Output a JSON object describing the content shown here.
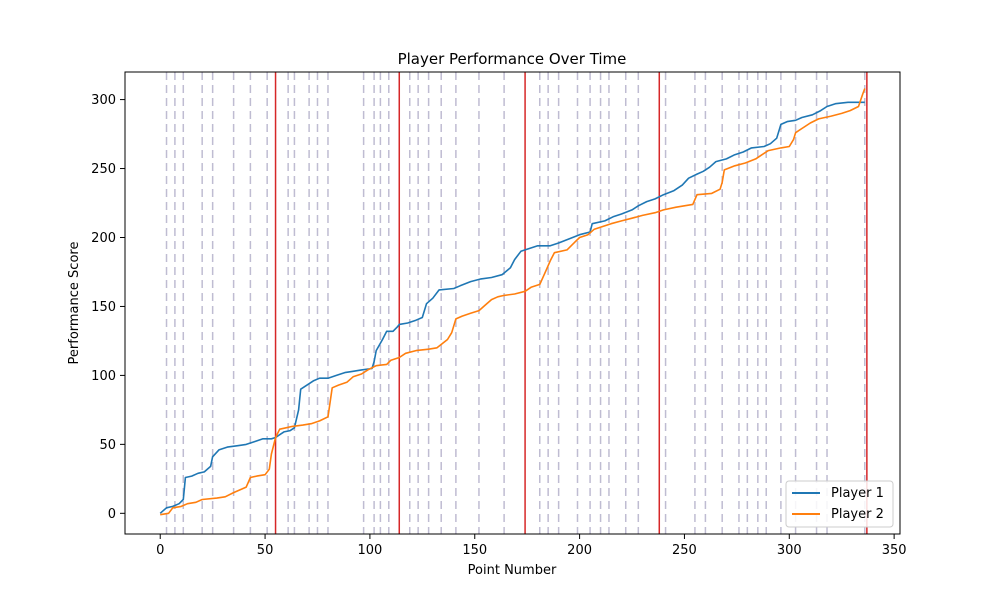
{
  "chart_data": {
    "type": "line",
    "title": "Player Performance Over Time",
    "xlabel": "Point Number",
    "ylabel": "Performance Score",
    "xlim": [
      -16.8,
      352.8
    ],
    "ylim": [
      -15,
      320
    ],
    "xticks": [
      0,
      50,
      100,
      150,
      200,
      250,
      300,
      350
    ],
    "yticks": [
      0,
      50,
      100,
      150,
      200,
      250,
      300
    ],
    "grid": false,
    "legend_position": "lower-right",
    "series": [
      {
        "name": "Player 1",
        "color": "#1f77b4",
        "points": [
          [
            0,
            0
          ],
          [
            3,
            4
          ],
          [
            6,
            5
          ],
          [
            9,
            7
          ],
          [
            11,
            10
          ],
          [
            12,
            26
          ],
          [
            15,
            27
          ],
          [
            18,
            29
          ],
          [
            21,
            30
          ],
          [
            24,
            34
          ],
          [
            25,
            41
          ],
          [
            28,
            46
          ],
          [
            32,
            48
          ],
          [
            37,
            49
          ],
          [
            41,
            50
          ],
          [
            45,
            52
          ],
          [
            49,
            54
          ],
          [
            53,
            54
          ],
          [
            55,
            55
          ],
          [
            57,
            57
          ],
          [
            59,
            59
          ],
          [
            62,
            60
          ],
          [
            64,
            62
          ],
          [
            66,
            75
          ],
          [
            67,
            90
          ],
          [
            70,
            93
          ],
          [
            73,
            96
          ],
          [
            76,
            98
          ],
          [
            80,
            98
          ],
          [
            84,
            100
          ],
          [
            88,
            102
          ],
          [
            92,
            103
          ],
          [
            96,
            104
          ],
          [
            101,
            105
          ],
          [
            102,
            110
          ],
          [
            103,
            118
          ],
          [
            106,
            126
          ],
          [
            108,
            132
          ],
          [
            111,
            132
          ],
          [
            113,
            135
          ],
          [
            114,
            137
          ],
          [
            118,
            138
          ],
          [
            122,
            140
          ],
          [
            125,
            142
          ],
          [
            126,
            147
          ],
          [
            127,
            152
          ],
          [
            130,
            156
          ],
          [
            133,
            162
          ],
          [
            140,
            163
          ],
          [
            143,
            165
          ],
          [
            148,
            168
          ],
          [
            153,
            170
          ],
          [
            158,
            171
          ],
          [
            163,
            173
          ],
          [
            167,
            178
          ],
          [
            169,
            184
          ],
          [
            172,
            190
          ],
          [
            176,
            192
          ],
          [
            180,
            194
          ],
          [
            186,
            194
          ],
          [
            190,
            196
          ],
          [
            195,
            199
          ],
          [
            200,
            202
          ],
          [
            205,
            204
          ],
          [
            206,
            210
          ],
          [
            212,
            212
          ],
          [
            216,
            215
          ],
          [
            220,
            217
          ],
          [
            225,
            220
          ],
          [
            228,
            223
          ],
          [
            232,
            226
          ],
          [
            236,
            228
          ],
          [
            240,
            231
          ],
          [
            245,
            234
          ],
          [
            249,
            238
          ],
          [
            252,
            243
          ],
          [
            256,
            246
          ],
          [
            259,
            248
          ],
          [
            262,
            251
          ],
          [
            265,
            255
          ],
          [
            270,
            257
          ],
          [
            274,
            260
          ],
          [
            278,
            262
          ],
          [
            282,
            265
          ],
          [
            288,
            266
          ],
          [
            291,
            268
          ],
          [
            294,
            272
          ],
          [
            296,
            282
          ],
          [
            299,
            284
          ],
          [
            303,
            285
          ],
          [
            306,
            287
          ],
          [
            311,
            289
          ],
          [
            315,
            292
          ],
          [
            318,
            295
          ],
          [
            322,
            297
          ],
          [
            328,
            298
          ],
          [
            336,
            298
          ]
        ]
      },
      {
        "name": "Player 2",
        "color": "#ff7f0e",
        "points": [
          [
            0,
            -1
          ],
          [
            4,
            0
          ],
          [
            6,
            4
          ],
          [
            10,
            5
          ],
          [
            13,
            7
          ],
          [
            17,
            8
          ],
          [
            20,
            10
          ],
          [
            27,
            11
          ],
          [
            31,
            12
          ],
          [
            35,
            15
          ],
          [
            38,
            17
          ],
          [
            41,
            19
          ],
          [
            43,
            26
          ],
          [
            46,
            27
          ],
          [
            50,
            28
          ],
          [
            52,
            32
          ],
          [
            53,
            43
          ],
          [
            55,
            55
          ],
          [
            57,
            61
          ],
          [
            60,
            62
          ],
          [
            63,
            63
          ],
          [
            68,
            64
          ],
          [
            72,
            65
          ],
          [
            76,
            67
          ],
          [
            80,
            70
          ],
          [
            82,
            91
          ],
          [
            85,
            93
          ],
          [
            89,
            95
          ],
          [
            92,
            99
          ],
          [
            96,
            101
          ],
          [
            99,
            104
          ],
          [
            103,
            107
          ],
          [
            108,
            108
          ],
          [
            110,
            111
          ],
          [
            114,
            113
          ],
          [
            117,
            116
          ],
          [
            122,
            118
          ],
          [
            128,
            119
          ],
          [
            132,
            120
          ],
          [
            137,
            126
          ],
          [
            139,
            131
          ],
          [
            141,
            141
          ],
          [
            144,
            143
          ],
          [
            148,
            145
          ],
          [
            152,
            147
          ],
          [
            155,
            151
          ],
          [
            158,
            155
          ],
          [
            161,
            157
          ],
          [
            164,
            158
          ],
          [
            169,
            159
          ],
          [
            174,
            161
          ],
          [
            177,
            164
          ],
          [
            181,
            166
          ],
          [
            184,
            176
          ],
          [
            186,
            183
          ],
          [
            188,
            189
          ],
          [
            194,
            191
          ],
          [
            198,
            197
          ],
          [
            200,
            200
          ],
          [
            204,
            202
          ],
          [
            207,
            206
          ],
          [
            211,
            208
          ],
          [
            215,
            210
          ],
          [
            220,
            212
          ],
          [
            225,
            214
          ],
          [
            230,
            216
          ],
          [
            236,
            218
          ],
          [
            240,
            220
          ],
          [
            246,
            222
          ],
          [
            250,
            223
          ],
          [
            254,
            224
          ],
          [
            256,
            231
          ],
          [
            263,
            232
          ],
          [
            267,
            235
          ],
          [
            268,
            240
          ],
          [
            269,
            249
          ],
          [
            274,
            252
          ],
          [
            279,
            254
          ],
          [
            284,
            257
          ],
          [
            287,
            260
          ],
          [
            290,
            263
          ],
          [
            296,
            265
          ],
          [
            300,
            266
          ],
          [
            302,
            271
          ],
          [
            303,
            276
          ],
          [
            306,
            279
          ],
          [
            310,
            283
          ],
          [
            314,
            286
          ],
          [
            320,
            288
          ],
          [
            325,
            290
          ],
          [
            329,
            292
          ],
          [
            333,
            295
          ],
          [
            335,
            304
          ],
          [
            336,
            308
          ]
        ]
      }
    ],
    "vlines_dashed": [
      3,
      7,
      11,
      20,
      25,
      35,
      43,
      51,
      61,
      64,
      71,
      75,
      80,
      97,
      102,
      105,
      109,
      119,
      123,
      128,
      134,
      141,
      152,
      164,
      181,
      185,
      190,
      199,
      205,
      210,
      214,
      222,
      228,
      241,
      255,
      260,
      268,
      276,
      280,
      285,
      289,
      296,
      303,
      313,
      318,
      336
    ],
    "vlines_solid": [
      55,
      114,
      174,
      238,
      337
    ],
    "vline_dashed_color": "#bfbcd2",
    "vline_solid_color": "#d62728"
  }
}
